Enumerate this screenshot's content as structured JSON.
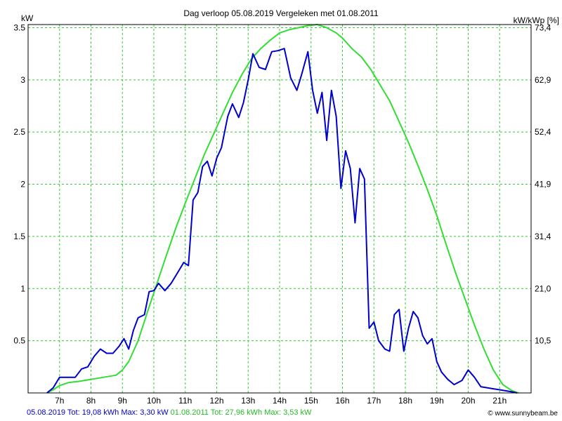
{
  "chart_data": {
    "type": "line",
    "title": "Dag  verloop 05.08.2019   Vergeleken met 01.08.2011",
    "ylabel_left": "kW",
    "ylabel_right": "kW/kWp [%]",
    "ylim": [
      0,
      3.53
    ],
    "yticks_left": [
      "3.5",
      "3",
      "2.5",
      "2",
      "1.5",
      "1",
      "0.5"
    ],
    "yticks_left_values": [
      3.5,
      3,
      2.5,
      2,
      1.5,
      1,
      0.5
    ],
    "yticks_right": [
      "73,4",
      "62,9",
      "52,4",
      "41,9",
      "31,4",
      "21,0",
      "10,5"
    ],
    "xlim": [
      6.0,
      22.0
    ],
    "xticks": [
      "7h",
      "8h",
      "9h",
      "10h",
      "11h",
      "12h",
      "13h",
      "14h",
      "15h",
      "16h",
      "17h",
      "18h",
      "19h",
      "20h",
      "21h"
    ],
    "xtick_values": [
      7,
      8,
      9,
      10,
      11,
      12,
      13,
      14,
      15,
      16,
      17,
      18,
      19,
      20,
      21
    ],
    "grid": true,
    "series": [
      {
        "name": "05.08.2019",
        "color": "#0000cc",
        "x": [
          6.6,
          6.8,
          7.0,
          7.25,
          7.5,
          7.7,
          7.9,
          8.1,
          8.3,
          8.5,
          8.7,
          8.9,
          9.05,
          9.2,
          9.35,
          9.5,
          9.7,
          9.85,
          10.0,
          10.15,
          10.35,
          10.55,
          10.75,
          10.95,
          11.1,
          11.25,
          11.4,
          11.55,
          11.7,
          11.85,
          12.0,
          12.15,
          12.35,
          12.5,
          12.7,
          12.85,
          13.0,
          13.15,
          13.35,
          13.55,
          13.75,
          13.95,
          14.15,
          14.35,
          14.55,
          14.7,
          14.9,
          15.05,
          15.2,
          15.35,
          15.5,
          15.65,
          15.8,
          15.95,
          16.1,
          16.25,
          16.4,
          16.55,
          16.7,
          16.85,
          17.0,
          17.15,
          17.35,
          17.5,
          17.65,
          17.8,
          17.95,
          18.1,
          18.25,
          18.4,
          18.55,
          18.7,
          18.85,
          19.0,
          19.15,
          19.35,
          19.55,
          19.8,
          20.0,
          20.2,
          20.4,
          20.6,
          20.8,
          21.0,
          21.2,
          21.4,
          21.55
        ],
        "y": [
          0.0,
          0.05,
          0.15,
          0.15,
          0.15,
          0.23,
          0.25,
          0.35,
          0.42,
          0.38,
          0.38,
          0.45,
          0.52,
          0.42,
          0.6,
          0.72,
          0.75,
          0.97,
          0.98,
          1.05,
          0.98,
          1.05,
          1.15,
          1.25,
          1.22,
          1.85,
          1.92,
          2.17,
          2.22,
          2.08,
          2.25,
          2.35,
          2.65,
          2.77,
          2.64,
          2.78,
          3.0,
          3.25,
          3.12,
          3.1,
          3.27,
          3.28,
          3.3,
          3.02,
          2.9,
          3.05,
          3.27,
          2.9,
          2.68,
          2.88,
          2.42,
          2.9,
          2.65,
          1.96,
          2.32,
          2.15,
          1.63,
          2.15,
          2.05,
          0.62,
          0.68,
          0.5,
          0.42,
          0.4,
          0.75,
          0.8,
          0.4,
          0.62,
          0.78,
          0.72,
          0.55,
          0.47,
          0.52,
          0.3,
          0.2,
          0.13,
          0.08,
          0.12,
          0.22,
          0.15,
          0.06,
          0.05,
          0.04,
          0.03,
          0.02,
          0.01,
          0.0
        ]
      },
      {
        "name": "01.08.2011",
        "color": "#33dd33",
        "x": [
          6.6,
          6.8,
          7.0,
          7.3,
          7.6,
          8.0,
          8.4,
          8.8,
          9.0,
          9.2,
          9.5,
          9.8,
          10.1,
          10.4,
          10.7,
          11.0,
          11.3,
          11.6,
          11.9,
          12.2,
          12.5,
          12.8,
          13.1,
          13.4,
          13.7,
          14.0,
          14.3,
          14.6,
          14.9,
          15.2,
          15.5,
          15.8,
          16.0,
          16.3,
          16.6,
          16.9,
          17.2,
          17.5,
          17.8,
          18.1,
          18.4,
          18.7,
          19.0,
          19.3,
          19.6,
          19.9,
          20.2,
          20.5,
          20.8,
          21.1,
          21.4,
          21.6
        ],
        "y": [
          0.0,
          0.03,
          0.07,
          0.1,
          0.11,
          0.13,
          0.15,
          0.17,
          0.22,
          0.3,
          0.5,
          0.78,
          1.05,
          1.32,
          1.58,
          1.82,
          2.05,
          2.28,
          2.48,
          2.68,
          2.88,
          3.05,
          3.2,
          3.3,
          3.38,
          3.45,
          3.48,
          3.5,
          3.52,
          3.53,
          3.5,
          3.45,
          3.4,
          3.3,
          3.22,
          3.1,
          2.95,
          2.8,
          2.6,
          2.4,
          2.18,
          1.95,
          1.7,
          1.42,
          1.15,
          0.9,
          0.65,
          0.42,
          0.22,
          0.08,
          0.02,
          0.0
        ]
      }
    ]
  },
  "footer": {
    "series1_date": "05.08.2019",
    "series1_stats": " Tot: 19,08 kWh Max: 3,30 kW ",
    "series2_date": "01.08.2011",
    "series2_stats": " Tot: 27,96 kWh Max: 3,53 kW",
    "credit": "© www.sunnybeam.be"
  }
}
